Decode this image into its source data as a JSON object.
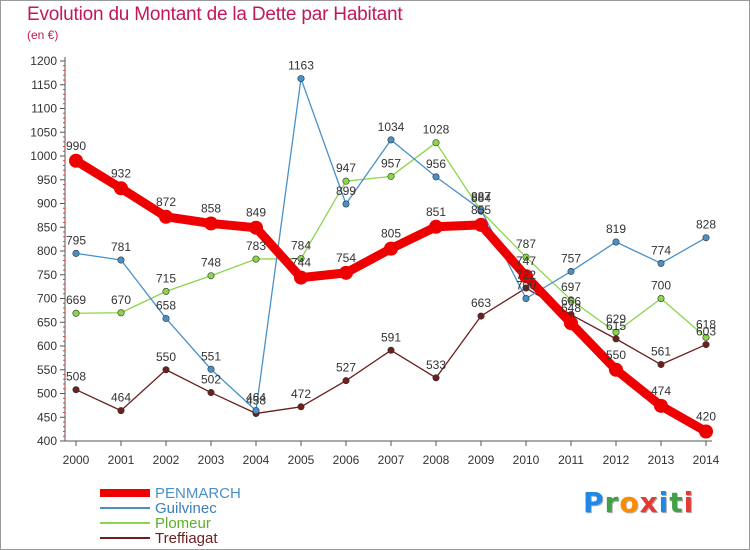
{
  "title": "Evolution du Montant de la Dette par Habitant",
  "subtitle": "(en €)",
  "brand": {
    "letters": [
      {
        "ch": "P",
        "color": "#1e88e5"
      },
      {
        "ch": "r",
        "color": "#43a047"
      },
      {
        "ch": "o",
        "color": "#fb8c00"
      },
      {
        "ch": "x",
        "color": "#e53935"
      },
      {
        "ch": "i",
        "color": "#1e88e5"
      },
      {
        "ch": "t",
        "color": "#43a047"
      },
      {
        "ch": "i",
        "color": "#e53935"
      }
    ]
  },
  "chart_data": {
    "type": "line",
    "x": [
      2000,
      2001,
      2002,
      2003,
      2004,
      2005,
      2006,
      2007,
      2008,
      2009,
      2010,
      2011,
      2012,
      2013,
      2014
    ],
    "ylim": [
      400,
      1200
    ],
    "yticks": [
      400,
      450,
      500,
      550,
      600,
      650,
      700,
      750,
      800,
      850,
      900,
      950,
      1000,
      1050,
      1100,
      1150,
      1200
    ],
    "grid": false,
    "legend_position": "bottom-left",
    "series": [
      {
        "name": "Treffiagat",
        "color": "#6b1f1f",
        "values": [
          508,
          464,
          550,
          502,
          458,
          472,
          527,
          591,
          533,
          663,
          722,
          666,
          615,
          561,
          603
        ]
      },
      {
        "name": "Plomeur",
        "color": "#8bd54a",
        "values": [
          669,
          670,
          715,
          748,
          783,
          784,
          947,
          957,
          1028,
          884,
          787,
          697,
          629,
          700,
          618
        ]
      },
      {
        "name": "Guilvinec",
        "color": "#4a90c8",
        "values": [
          795,
          781,
          658,
          551,
          464,
          1163,
          899,
          1034,
          956,
          887,
          700,
          757,
          819,
          774,
          828
        ]
      },
      {
        "name": "PENMARCH",
        "color": "#ee0000",
        "values": [
          990,
          932,
          872,
          858,
          849,
          744,
          754,
          805,
          851,
          855,
          747,
          648,
          550,
          474,
          420
        ]
      }
    ]
  }
}
